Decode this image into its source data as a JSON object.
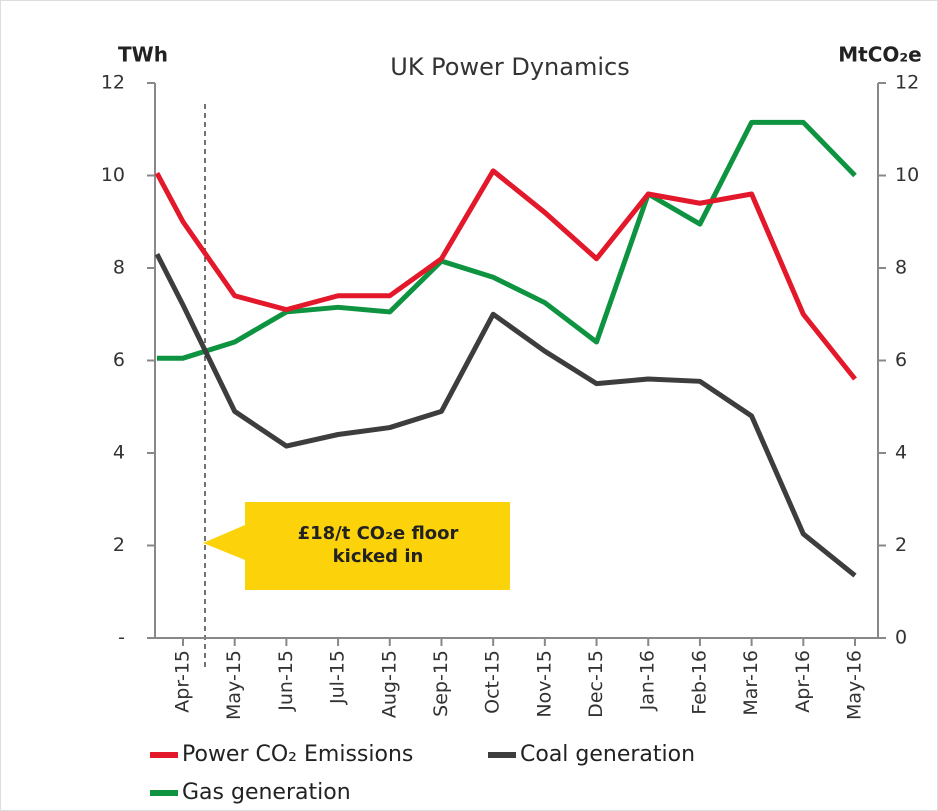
{
  "chart_data": {
    "type": "line",
    "title": "UK Power Dynamics",
    "y_label": "TWh",
    "y2_label": "MtCO₂e",
    "categories": [
      null,
      "Apr-15",
      "May-15",
      "Jun-15",
      "Jul-15",
      "Aug-15",
      "Sep-15",
      "Oct-15",
      "Nov-15",
      "Dec-15",
      "Jan-16",
      "Feb-16",
      "Mar-16",
      "Apr-16",
      "May-16"
    ],
    "series": [
      {
        "name": "Power CO₂ Emissions",
        "color": "#e3182a",
        "axis": "y2",
        "values": [
          10.05,
          9.0,
          7.4,
          7.1,
          7.4,
          7.4,
          8.2,
          10.1,
          9.2,
          8.2,
          9.6,
          9.4,
          9.6,
          7.0,
          5.6
        ]
      },
      {
        "name": "Coal generation",
        "color": "#3d3d3d",
        "values": [
          8.3,
          7.2,
          4.9,
          4.15,
          4.4,
          4.55,
          4.9,
          7.0,
          6.2,
          5.5,
          5.6,
          5.55,
          4.8,
          2.25,
          1.35
        ]
      },
      {
        "name": "Gas generation",
        "color": "#0e9441",
        "values": [
          6.05,
          6.05,
          6.4,
          7.05,
          7.15,
          7.05,
          8.15,
          7.8,
          7.25,
          6.4,
          9.6,
          8.95,
          11.15,
          11.15,
          10.0
        ]
      }
    ],
    "ylim": [
      0,
      12
    ],
    "yticks": [
      {
        "value": 0,
        "label": "-"
      },
      2,
      4,
      6,
      8,
      10,
      12
    ],
    "y2lim": [
      0,
      12
    ],
    "y2ticks": [
      0,
      2,
      4,
      6,
      8,
      10,
      12
    ],
    "annotation": [
      "£18/t CO₂e floor",
      "kicked in"
    ]
  }
}
